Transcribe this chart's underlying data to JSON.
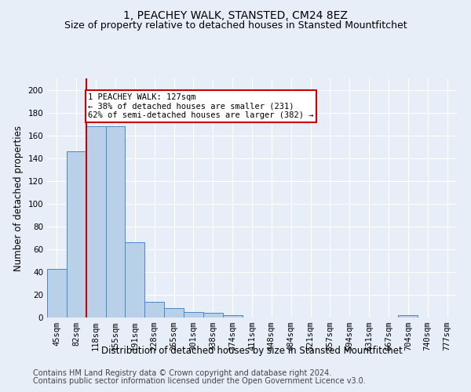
{
  "title": "1, PEACHEY WALK, STANSTED, CM24 8EZ",
  "subtitle": "Size of property relative to detached houses in Stansted Mountfitchet",
  "xlabel": "Distribution of detached houses by size in Stansted Mountfitchet",
  "ylabel": "Number of detached properties",
  "bin_labels": [
    "45sqm",
    "82sqm",
    "118sqm",
    "155sqm",
    "191sqm",
    "228sqm",
    "265sqm",
    "301sqm",
    "338sqm",
    "374sqm",
    "411sqm",
    "448sqm",
    "484sqm",
    "521sqm",
    "557sqm",
    "594sqm",
    "631sqm",
    "667sqm",
    "704sqm",
    "740sqm",
    "777sqm"
  ],
  "bar_values": [
    43,
    146,
    168,
    168,
    66,
    14,
    8,
    5,
    4,
    2,
    0,
    0,
    0,
    0,
    0,
    0,
    0,
    0,
    2,
    0,
    0
  ],
  "bar_color": "#b8d0e8",
  "bar_edge_color": "#4a86c8",
  "property_bin_index": 2,
  "red_line_color": "#cc0000",
  "annotation_text": "1 PEACHEY WALK: 127sqm\n← 38% of detached houses are smaller (231)\n62% of semi-detached houses are larger (382) →",
  "annotation_box_color": "#ffffff",
  "annotation_box_edge_color": "#cc0000",
  "ylim": [
    0,
    210
  ],
  "yticks": [
    0,
    20,
    40,
    60,
    80,
    100,
    120,
    140,
    160,
    180,
    200
  ],
  "footer_line1": "Contains HM Land Registry data © Crown copyright and database right 2024.",
  "footer_line2": "Contains public sector information licensed under the Open Government Licence v3.0.",
  "bg_color": "#e8eef8",
  "grid_color": "#ffffff",
  "title_fontsize": 10,
  "subtitle_fontsize": 9,
  "xlabel_fontsize": 8.5,
  "ylabel_fontsize": 8.5,
  "tick_fontsize": 7.5,
  "annotation_fontsize": 7.5,
  "footer_fontsize": 7
}
